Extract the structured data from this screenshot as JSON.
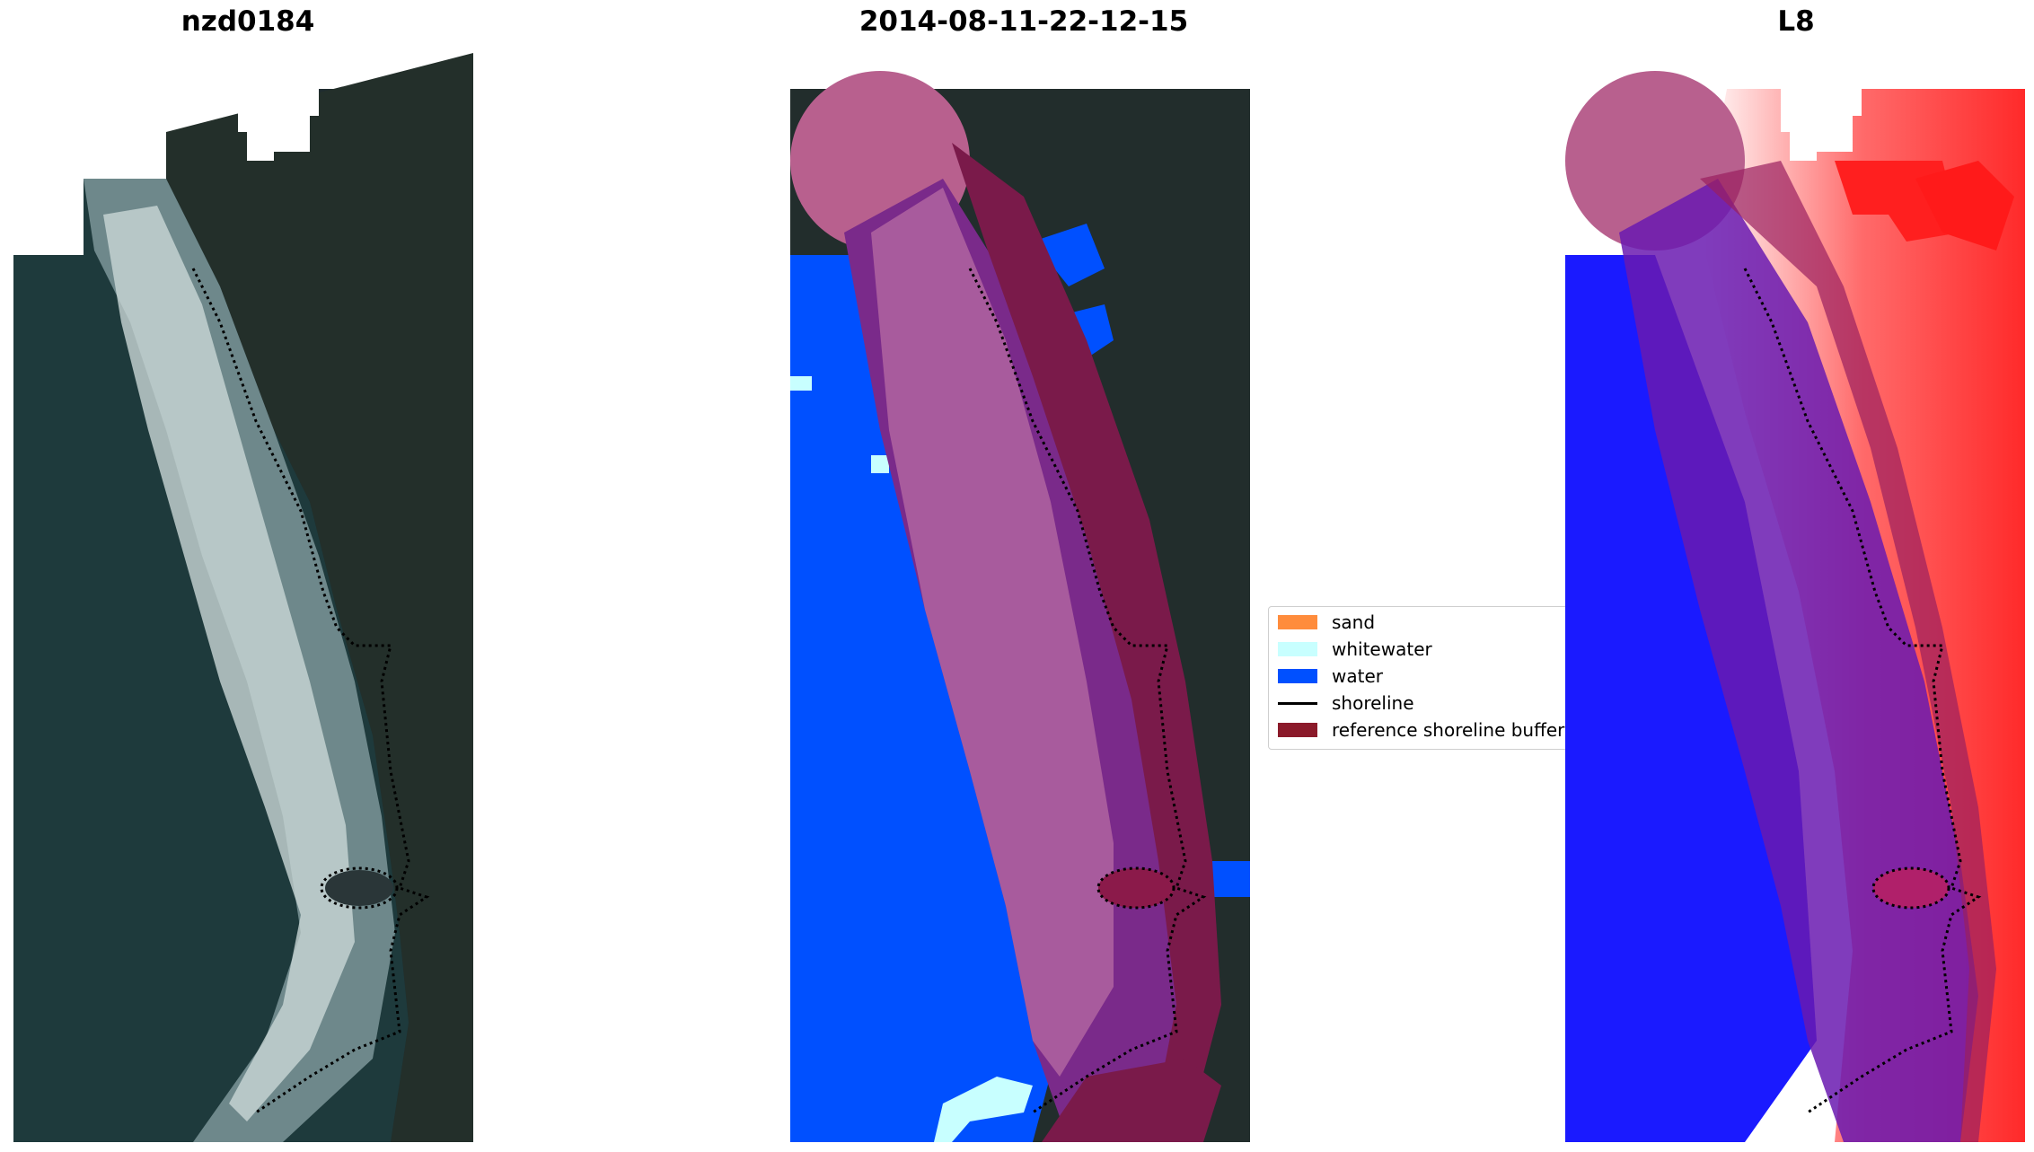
{
  "panels": [
    {
      "title": "nzd0184"
    },
    {
      "title": "2014-08-11-22-12-15"
    },
    {
      "title": "L8"
    }
  ],
  "legend": {
    "items": [
      {
        "label": "sand",
        "color": "#ff8c3c"
      },
      {
        "label": "whitewater",
        "color": "#c8ffff"
      },
      {
        "label": "water",
        "color": "#0050ff"
      },
      {
        "label": "shoreline",
        "color": "#000000"
      },
      {
        "label": "reference shoreline buffer",
        "color": "#8b1a2a"
      }
    ]
  },
  "colors": {
    "land": "#1e2a30",
    "ocean": "#1c3436",
    "buffer_pink": "#b8608e",
    "buffer_dark": "#7a1a4a",
    "water_index_blue": "#1a1aff",
    "land_index_red": "#ff2a2a"
  }
}
